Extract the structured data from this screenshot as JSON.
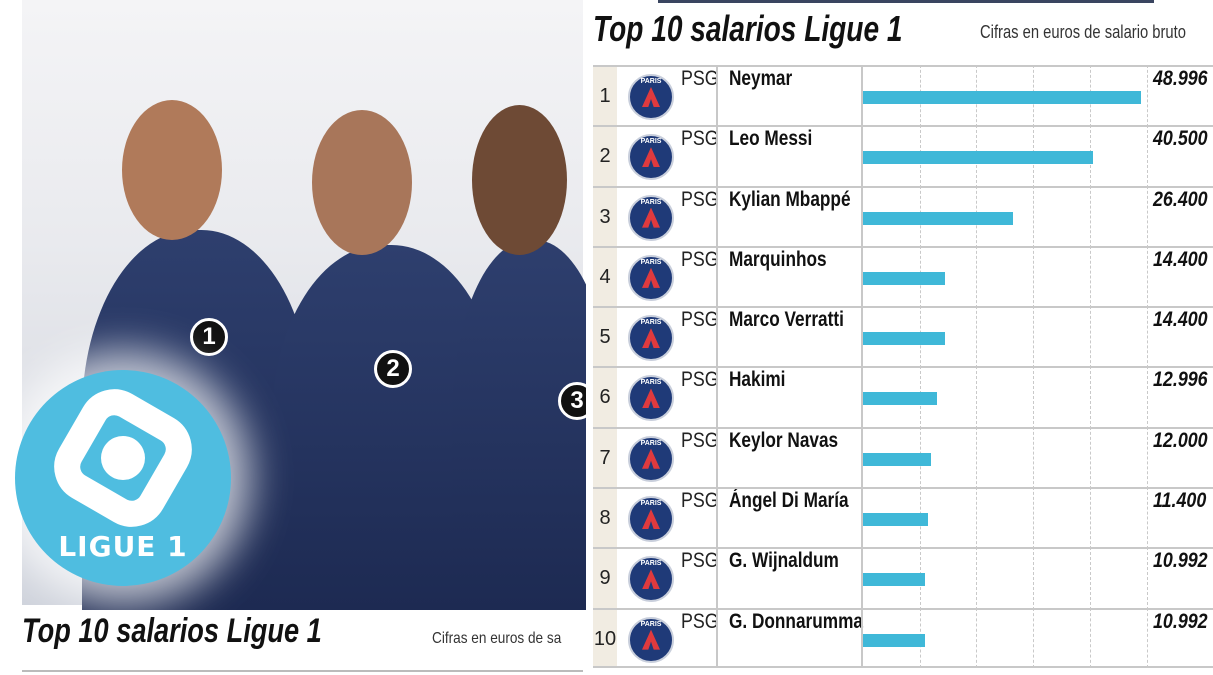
{
  "left_panel": {
    "logo_text": "LIGUE 1",
    "player_numbers": [
      "1",
      "2",
      "3"
    ],
    "title": "Top 10 salarios Ligue 1",
    "subtitle": "Cifras en euros de sa"
  },
  "chart_data": {
    "type": "bar",
    "title": "Top 10 salarios Ligue 1",
    "subtitle": "Cifras en euros de salario bruto",
    "orientation": "horizontal",
    "grid": true,
    "xlim": [
      0,
      50
    ],
    "bar_color": "#3fb8d8",
    "rows": [
      {
        "rank": "1",
        "club": "PSG",
        "name": "Neymar",
        "value": 48.996,
        "label": "48.996"
      },
      {
        "rank": "2",
        "club": "PSG",
        "name": "Leo Messi",
        "value": 40.5,
        "label": "40.500"
      },
      {
        "rank": "3",
        "club": "PSG",
        "name": "Kylian Mbappé",
        "value": 26.4,
        "label": "26.400"
      },
      {
        "rank": "4",
        "club": "PSG",
        "name": "Marquinhos",
        "value": 14.4,
        "label": "14.400"
      },
      {
        "rank": "5",
        "club": "PSG",
        "name": "Marco Verratti",
        "value": 14.4,
        "label": "14.400"
      },
      {
        "rank": "6",
        "club": "PSG",
        "name": "Hakimi",
        "value": 12.996,
        "label": "12.996"
      },
      {
        "rank": "7",
        "club": "PSG",
        "name": "Keylor Navas",
        "value": 12.0,
        "label": "12.000"
      },
      {
        "rank": "8",
        "club": "PSG",
        "name": "Ángel Di María",
        "value": 11.4,
        "label": "11.400"
      },
      {
        "rank": "9",
        "club": "PSG",
        "name": "G. Wijnaldum",
        "value": 10.992,
        "label": "10.992"
      },
      {
        "rank": "10",
        "club": "PSG",
        "name": "G. Donnarumma",
        "value": 10.992,
        "label": "10.992"
      }
    ],
    "club_badge_text": "PARIS"
  }
}
